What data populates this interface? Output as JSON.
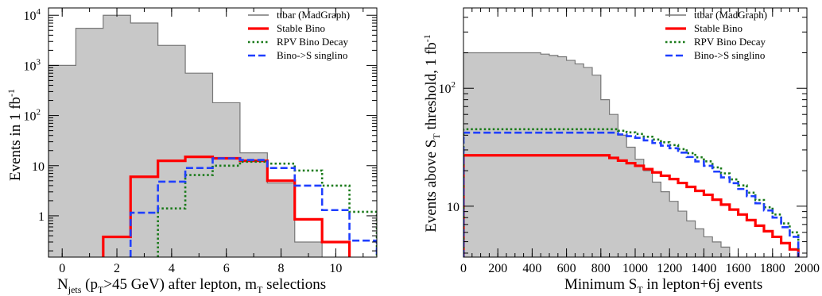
{
  "chart_data": [
    {
      "type": "histogram",
      "xlabel_main": "N",
      "xlabel_sub_jets": "jets",
      "xlabel_mid1": " (p",
      "xlabel_sub_T1": "T",
      "xlabel_mid2": ">45 GeV) after lepton, m",
      "xlabel_sub_T2": "T",
      "xlabel_end": " selections",
      "ylabel": "Events in 1 fb",
      "ylabel_sup": "-1",
      "x_ticks": [
        "0",
        "2",
        "4",
        "6",
        "8",
        "10"
      ],
      "y_ticks": [
        {
          "base": "1",
          "exp": ""
        },
        {
          "base": "10",
          "exp": ""
        },
        {
          "base": "10",
          "exp": "2"
        },
        {
          "base": "10",
          "exp": "3"
        },
        {
          "base": "10",
          "exp": "4"
        }
      ],
      "y_scale": "log",
      "xlim": [
        -0.5,
        11.5
      ],
      "ylim": [
        0.15,
        14000
      ],
      "legend": [
        "ttbar (MadGraph)",
        "Stable Bino",
        "RPV Bino Decay",
        "Bino->S singlino"
      ],
      "legend_position": "top-right",
      "series": [
        {
          "name": "ttbar (MadGraph)",
          "style": "filled-gray",
          "edges": [
            -0.5,
            0.5,
            1.5,
            2.5,
            3.5,
            4.5,
            5.5,
            6.5,
            7.5,
            8.5,
            9.5
          ],
          "values": [
            1000,
            5500,
            10000,
            7000,
            2500,
            700,
            180,
            18,
            4.5,
            0.3
          ]
        },
        {
          "name": "Stable Bino",
          "style": "red-solid",
          "edges": [
            1.5,
            2.5,
            3.5,
            4.5,
            5.5,
            6.5,
            7.5,
            8.5,
            9.5,
            10.5
          ],
          "values": [
            0.38,
            6,
            12.5,
            15,
            14,
            12.5,
            5,
            0.85,
            0.3
          ]
        },
        {
          "name": "RPV Bino Decay",
          "style": "green-dotted",
          "edges": [
            3.5,
            4.5,
            5.5,
            6.5,
            7.5,
            8.5,
            9.5,
            10.5,
            11.5
          ],
          "values": [
            1.4,
            6.5,
            10,
            12,
            11,
            8,
            4,
            1.2
          ]
        },
        {
          "name": "Bino->S singlino",
          "style": "blue-dashed",
          "edges": [
            2.5,
            3.5,
            4.5,
            5.5,
            6.5,
            7.5,
            8.5,
            9.5,
            10.5,
            11.5
          ],
          "values": [
            1.15,
            4.8,
            9,
            14,
            13,
            9,
            4,
            1.3,
            0.32
          ]
        }
      ]
    },
    {
      "type": "cumulative-step",
      "xlabel_main": "Minimum S",
      "xlabel_sub": "T",
      "xlabel_end": " in lepton+6j events",
      "ylabel_a": "Events above S",
      "ylabel_sub": "T",
      "ylabel_b": " threshold, 1 fb",
      "ylabel_sup": "-1",
      "x_ticks": [
        "0",
        "200",
        "400",
        "600",
        "800",
        "1000",
        "1200",
        "1400",
        "1600",
        "1800",
        "2000"
      ],
      "y_ticks": [
        {
          "base": "10",
          "exp": ""
        },
        {
          "base": "10",
          "exp": "2"
        }
      ],
      "y_scale": "log",
      "xlim": [
        0,
        2000
      ],
      "ylim": [
        3.7,
        480
      ],
      "bin_width": 50,
      "legend": [
        "ttbar (MadGraph)",
        "Stable Bino",
        "RPV Bino Decay",
        "Bino->S singlino"
      ],
      "legend_position": "top-right",
      "series": [
        {
          "name": "ttbar (MadGraph)",
          "style": "filled-gray",
          "x_end": 1550,
          "points": [
            [
              0,
              200
            ],
            [
              400,
              200
            ],
            [
              550,
              185
            ],
            [
              700,
              150
            ],
            [
              775,
              120
            ],
            [
              800,
              80
            ],
            [
              850,
              60
            ],
            [
              900,
              40
            ],
            [
              1000,
              25
            ],
            [
              1100,
              16
            ],
            [
              1200,
              11
            ],
            [
              1300,
              7.5
            ],
            [
              1400,
              5.5
            ],
            [
              1500,
              4.5
            ],
            [
              1550,
              3.8
            ]
          ]
        },
        {
          "name": "Stable Bino",
          "style": "red-solid",
          "x_end": 1950,
          "points": [
            [
              0,
              27
            ],
            [
              800,
              27
            ],
            [
              1000,
              22
            ],
            [
              1200,
              17
            ],
            [
              1400,
              12.5
            ],
            [
              1600,
              8.5
            ],
            [
              1800,
              5.5
            ],
            [
              1900,
              4.3
            ],
            [
              1950,
              3.7
            ]
          ]
        },
        {
          "name": "RPV Bino Decay",
          "style": "green-dotted",
          "x_end": 1950,
          "points": [
            [
              0,
              45
            ],
            [
              850,
              45
            ],
            [
              1000,
              41
            ],
            [
              1200,
              33
            ],
            [
              1400,
              24
            ],
            [
              1600,
              15
            ],
            [
              1800,
              8.5
            ],
            [
              1900,
              6
            ],
            [
              1950,
              4.6
            ]
          ]
        },
        {
          "name": "Bino->S singlino",
          "style": "blue-dashed",
          "x_end": 1950,
          "points": [
            [
              0,
              42
            ],
            [
              850,
              42
            ],
            [
              1000,
              38
            ],
            [
              1200,
              31
            ],
            [
              1400,
              22
            ],
            [
              1600,
              14
            ],
            [
              1800,
              8
            ],
            [
              1900,
              5.5
            ],
            [
              1950,
              4.1
            ]
          ]
        }
      ]
    }
  ]
}
